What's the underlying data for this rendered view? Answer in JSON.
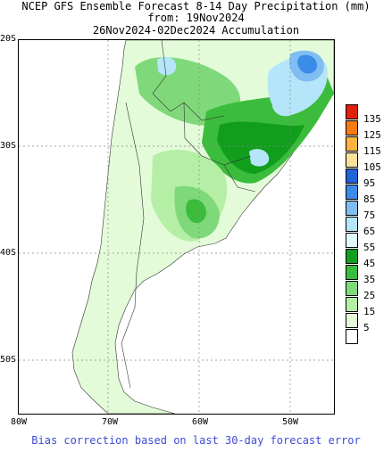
{
  "title": {
    "line1": "NCEP GFS Ensemble Forecast 8-14 Day Precipitation (mm)",
    "line2": "from: 19Nov2024",
    "line3": "26Nov2024-02Dec2024 Accumulation"
  },
  "map": {
    "lat_labels": [
      "20S",
      "30S",
      "40S",
      "50S"
    ],
    "lon_labels": [
      "80W",
      "70W",
      "60W",
      "50W"
    ],
    "region": "southern South America"
  },
  "legend": {
    "levels": [
      {
        "label": "135",
        "color": "#e0200a"
      },
      {
        "label": "125",
        "color": "#f87a12"
      },
      {
        "label": "115",
        "color": "#fcb341"
      },
      {
        "label": "105",
        "color": "#f9e29b"
      },
      {
        "label": "95",
        "color": "#1f63d6"
      },
      {
        "label": "85",
        "color": "#3b8be8"
      },
      {
        "label": "75",
        "color": "#7fbdf2"
      },
      {
        "label": "65",
        "color": "#b4e5f9"
      },
      {
        "label": "55",
        "color": "#e1fbfb"
      },
      {
        "label": "45",
        "color": "#119e1d"
      },
      {
        "label": "35",
        "color": "#3cbc3c"
      },
      {
        "label": "25",
        "color": "#7fd97a"
      },
      {
        "label": "15",
        "color": "#b5efa6"
      },
      {
        "label": "5",
        "color": "#e3fbd8"
      },
      {
        "label": "",
        "color": "#ffffff"
      }
    ]
  },
  "footer": "Bias correction based on last 30-day forecast error"
}
